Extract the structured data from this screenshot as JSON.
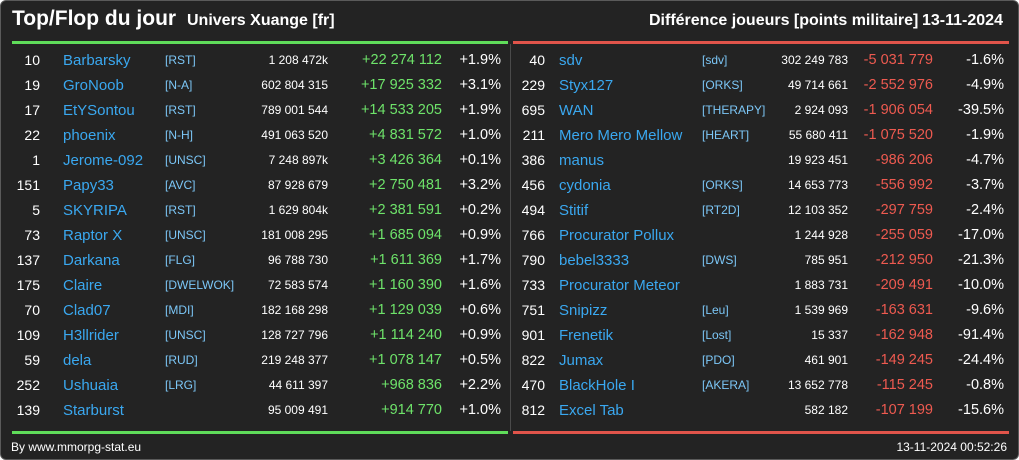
{
  "header": {
    "title": "Top/Flop du jour",
    "subtitle": "Univers Xuange [fr]",
    "metric": "Différence joueurs [points militaire]",
    "date": "13-11-2024"
  },
  "colors": {
    "gain": "#6ee36a",
    "loss": "#ee5a50",
    "name": "#3aa8f0",
    "background": "#232323"
  },
  "top": [
    {
      "rank": "10",
      "name": "Barbarsky",
      "tag": "[RST]",
      "points": "1 208 472k",
      "diff": "+22 274 112",
      "pct": "+1.9%"
    },
    {
      "rank": "19",
      "name": "GroNoob",
      "tag": "[N-A]",
      "points": "602 804 315",
      "diff": "+17 925 332",
      "pct": "+3.1%"
    },
    {
      "rank": "17",
      "name": "EtYSontou",
      "tag": "[RST]",
      "points": "789 001 544",
      "diff": "+14 533 205",
      "pct": "+1.9%"
    },
    {
      "rank": "22",
      "name": "phoenix",
      "tag": "[N-H]",
      "points": "491 063 520",
      "diff": "+4 831 572",
      "pct": "+1.0%"
    },
    {
      "rank": "1",
      "name": "Jerome-092",
      "tag": "[UNSC]",
      "points": "7 248 897k",
      "diff": "+3 426 364",
      "pct": "+0.1%"
    },
    {
      "rank": "151",
      "name": "Papy33",
      "tag": "[AVC]",
      "points": "87 928 679",
      "diff": "+2 750 481",
      "pct": "+3.2%"
    },
    {
      "rank": "5",
      "name": "SKYRIPA",
      "tag": "[RST]",
      "points": "1 629 804k",
      "diff": "+2 381 591",
      "pct": "+0.2%"
    },
    {
      "rank": "73",
      "name": "Raptor X",
      "tag": "[UNSC]",
      "points": "181 008 295",
      "diff": "+1 685 094",
      "pct": "+0.9%"
    },
    {
      "rank": "137",
      "name": "Darkana",
      "tag": "[FLG]",
      "points": "96 788 730",
      "diff": "+1 611 369",
      "pct": "+1.7%"
    },
    {
      "rank": "175",
      "name": "Claire",
      "tag": "[DWELWOK]",
      "points": "72 583 574",
      "diff": "+1 160 390",
      "pct": "+1.6%"
    },
    {
      "rank": "70",
      "name": "Clad07",
      "tag": "[MDI]",
      "points": "182 168 298",
      "diff": "+1 129 039",
      "pct": "+0.6%"
    },
    {
      "rank": "109",
      "name": "H3llrider",
      "tag": "[UNSC]",
      "points": "128 727 796",
      "diff": "+1 114 240",
      "pct": "+0.9%"
    },
    {
      "rank": "59",
      "name": "dela",
      "tag": "[RUD]",
      "points": "219 248 377",
      "diff": "+1 078 147",
      "pct": "+0.5%"
    },
    {
      "rank": "252",
      "name": "Ushuaia",
      "tag": "[LRG]",
      "points": "44 611 397",
      "diff": "+968 836",
      "pct": "+2.2%"
    },
    {
      "rank": "139",
      "name": "Starburst",
      "tag": "",
      "points": "95 009 491",
      "diff": "+914 770",
      "pct": "+1.0%"
    }
  ],
  "flop": [
    {
      "rank": "40",
      "name": "sdv",
      "tag": "[sdv]",
      "points": "302 249 783",
      "diff": "-5 031 779",
      "pct": "-1.6%"
    },
    {
      "rank": "229",
      "name": "Styx127",
      "tag": "[ORKS]",
      "points": "49 714 661",
      "diff": "-2 552 976",
      "pct": "-4.9%"
    },
    {
      "rank": "695",
      "name": "WAN",
      "tag": "[THERAPY]",
      "points": "2 924 093",
      "diff": "-1 906 054",
      "pct": "-39.5%"
    },
    {
      "rank": "211",
      "name": "Mero Mero Mellow",
      "tag": "[HEART]",
      "points": "55 680 411",
      "diff": "-1 075 520",
      "pct": "-1.9%"
    },
    {
      "rank": "386",
      "name": "manus",
      "tag": "",
      "points": "19 923 451",
      "diff": "-986 206",
      "pct": "-4.7%"
    },
    {
      "rank": "456",
      "name": "cydonia",
      "tag": "[ORKS]",
      "points": "14 653 773",
      "diff": "-556 992",
      "pct": "-3.7%"
    },
    {
      "rank": "494",
      "name": "Stitif",
      "tag": "[RT2D]",
      "points": "12 103 352",
      "diff": "-297 759",
      "pct": "-2.4%"
    },
    {
      "rank": "766",
      "name": "Procurator Pollux",
      "tag": "",
      "points": "1 244 928",
      "diff": "-255 059",
      "pct": "-17.0%"
    },
    {
      "rank": "790",
      "name": "bebel3333",
      "tag": "[DWS]",
      "points": "785 951",
      "diff": "-212 950",
      "pct": "-21.3%"
    },
    {
      "rank": "733",
      "name": "Procurator Meteor",
      "tag": "",
      "points": "1 883 731",
      "diff": "-209 491",
      "pct": "-10.0%"
    },
    {
      "rank": "751",
      "name": "Snipizz",
      "tag": "[Leu]",
      "points": "1 539 969",
      "diff": "-163 631",
      "pct": "-9.6%"
    },
    {
      "rank": "901",
      "name": "Frenetik",
      "tag": "[Lost]",
      "points": "15 337",
      "diff": "-162 948",
      "pct": "-91.4%"
    },
    {
      "rank": "822",
      "name": "Jumax",
      "tag": "[PDO]",
      "points": "461 901",
      "diff": "-149 245",
      "pct": "-24.4%"
    },
    {
      "rank": "470",
      "name": "BlackHole I",
      "tag": "[AKERA]",
      "points": "13 652 778",
      "diff": "-115 245",
      "pct": "-0.8%"
    },
    {
      "rank": "812",
      "name": "Excel Tab",
      "tag": "",
      "points": "582 182",
      "diff": "-107 199",
      "pct": "-15.6%"
    }
  ],
  "footer": {
    "source": "By www.mmorpg-stat.eu",
    "timestamp": "13-11-2024 00:52:26"
  }
}
